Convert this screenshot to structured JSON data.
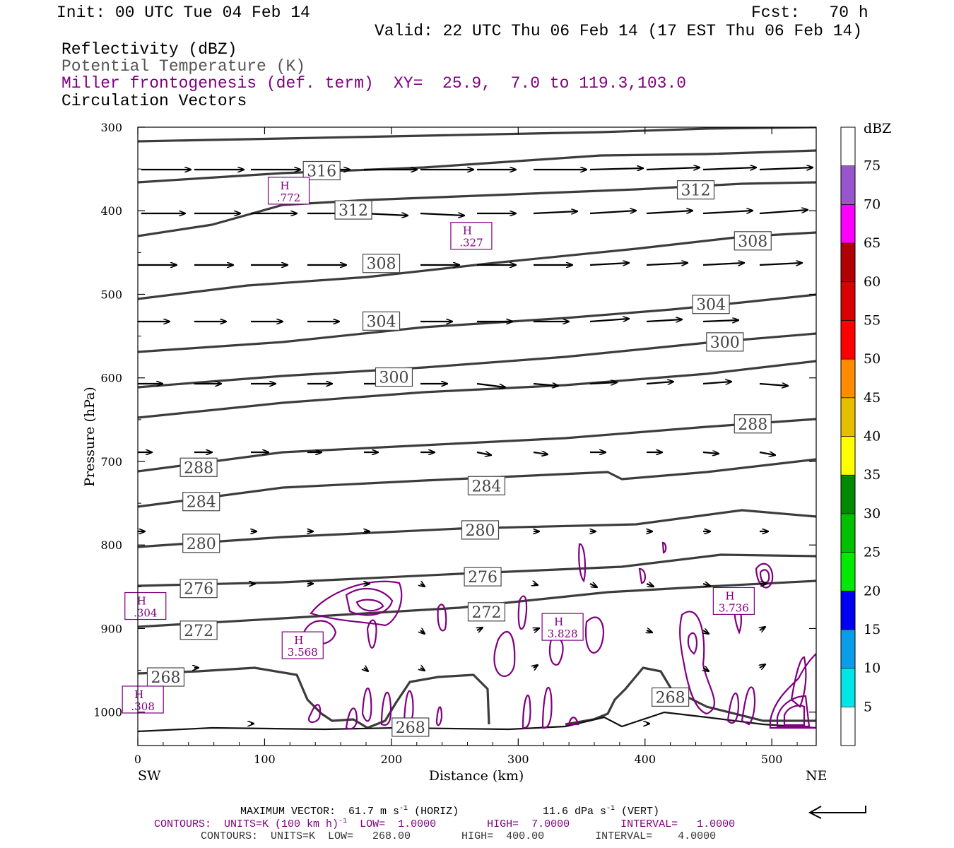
{
  "header": {
    "init": "Init: 00 UTC Tue 04 Feb 14",
    "fcst": "Fcst:   70 h",
    "valid": "Valid: 22 UTC Thu 06 Feb 14 (17 EST Thu 06 Feb 14)",
    "fields": [
      {
        "label": "Reflectivity (dBZ)",
        "color": "#000000"
      },
      {
        "label": "Potential Temperature (K)",
        "color": "#555555"
      },
      {
        "label": "Miller frontogenesis (def. term)",
        "color": "#800080"
      },
      {
        "label": "Circulation Vectors",
        "color": "#000000"
      }
    ],
    "xy": "XY=  25.9,  7.0 to 119.3,103.0"
  },
  "chart_data": {
    "type": "cross-section",
    "xlabel": "Distance (km)",
    "ylabel": "Pressure (hPa)",
    "xlim": [
      0,
      535
    ],
    "ylim": [
      1040,
      300
    ],
    "x_ticks": [
      "0",
      "100",
      "200",
      "300",
      "400",
      "500"
    ],
    "y_ticks": [
      "300",
      "400",
      "500",
      "600",
      "700",
      "800",
      "900",
      "1000"
    ],
    "left_end": "SW",
    "right_end": "NE",
    "theta_contours": {
      "color": "#444444",
      "labels": [
        {
          "text": "316",
          "x": 145,
          "p": 352
        },
        {
          "text": "312",
          "x": 170,
          "p": 399
        },
        {
          "text": "312",
          "x": 440,
          "p": 375
        },
        {
          "text": "308",
          "x": 192,
          "p": 463
        },
        {
          "text": "308",
          "x": 485,
          "p": 436
        },
        {
          "text": "304",
          "x": 192,
          "p": 532
        },
        {
          "text": "304",
          "x": 452,
          "p": 512
        },
        {
          "text": "300",
          "x": 202,
          "p": 599
        },
        {
          "text": "300",
          "x": 463,
          "p": 557
        },
        {
          "text": "288",
          "x": 48,
          "p": 707
        },
        {
          "text": "288",
          "x": 485,
          "p": 655
        },
        {
          "text": "284",
          "x": 50,
          "p": 748
        },
        {
          "text": "284",
          "x": 275,
          "p": 729
        },
        {
          "text": "280",
          "x": 50,
          "p": 798
        },
        {
          "text": "280",
          "x": 270,
          "p": 782
        },
        {
          "text": "276",
          "x": 48,
          "p": 852
        },
        {
          "text": "276",
          "x": 272,
          "p": 838
        },
        {
          "text": "272",
          "x": 48,
          "p": 902
        },
        {
          "text": "272",
          "x": 275,
          "p": 880
        },
        {
          "text": "268",
          "x": 22,
          "p": 958
        },
        {
          "text": "268",
          "x": 420,
          "p": 982
        },
        {
          "text": "268",
          "x": 215,
          "p": 1018
        }
      ]
    },
    "frontogenesis_maxima": [
      {
        "label": "H",
        "value": ".772",
        "x": 119,
        "p": 376
      },
      {
        "label": "H",
        "value": ".327",
        "x": 263,
        "p": 430
      },
      {
        "label": "H",
        "value": ".304",
        "x": 6,
        "p": 873
      },
      {
        "label": "H",
        "value": "3.568",
        "x": 130,
        "p": 920
      },
      {
        "label": "H",
        "value": "3.828",
        "x": 335,
        "p": 898
      },
      {
        "label": "H",
        "value": "3.736",
        "x": 470,
        "p": 867
      },
      {
        "label": "H",
        "value": ".308",
        "x": 4,
        "p": 985
      }
    ],
    "colorbar": {
      "title": "dBZ",
      "levels": [
        "5",
        "10",
        "15",
        "20",
        "25",
        "30",
        "35",
        "40",
        "45",
        "50",
        "55",
        "60",
        "65",
        "70",
        "75"
      ],
      "colors": [
        "#ffffff",
        "#00e5e5",
        "#0a9eea",
        "#0000f0",
        "#00ea00",
        "#00c000",
        "#008800",
        "#ffff00",
        "#e6c000",
        "#ff8c00",
        "#ff0000",
        "#d80000",
        "#b00000",
        "#ff00ff",
        "#9955cc",
        "#ffffff"
      ]
    }
  },
  "footer": {
    "max_vector": "MAXIMUM VECTOR:  61.7 m s",
    "max_vector_sup": "-1",
    "max_vector_horiz": " (HORIZ)",
    "vert": "11.6 dPa s",
    "vert_sup": "-1",
    "vert_end": " (VERT)",
    "contours1a": "CONTOURS:  UNITS=K (100 km h)",
    "contours1_sup": "-1",
    "contours1b": "  LOW=  1.0000        HIGH=  7.0000        INTERVAL=   1.0000",
    "contours2": "CONTOURS:  UNITS=K  LOW=   268.00        HIGH=  400.00        INTERVAL=    4.0000"
  }
}
